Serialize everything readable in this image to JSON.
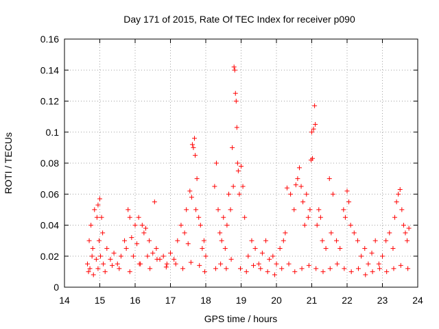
{
  "chart_data": {
    "type": "scatter",
    "title": "Day 171 of 2015, Rate Of TEC Index for receiver p090",
    "xlabel": "GPS time / hours",
    "ylabel": "ROTI / TECUs",
    "xlim": [
      14,
      24
    ],
    "ylim": [
      0,
      0.16
    ],
    "grid": true,
    "marker": "+",
    "colors": {
      "series": "#ff0000",
      "axis": "#000000",
      "grid": "#a0a0a0"
    },
    "xticks": [
      14,
      15,
      16,
      17,
      18,
      19,
      20,
      21,
      22,
      23,
      24
    ],
    "xtick_labels": [
      "14",
      "15",
      "16",
      "17",
      "18",
      "19",
      "20",
      "21",
      "22",
      "23",
      "24"
    ],
    "yticks": [
      0,
      0.02,
      0.04,
      0.06,
      0.08,
      0.1,
      0.12,
      0.14,
      0.16
    ],
    "ytick_labels": [
      "0",
      "0.02",
      "0.04",
      "0.06",
      "0.08",
      "0.1",
      "0.12",
      "0.14",
      "0.16"
    ],
    "series": [
      {
        "name": "ROTI",
        "x": [
          14.65,
          14.7,
          14.72,
          14.75,
          14.78,
          14.8,
          14.85,
          14.9,
          14.92,
          14.95,
          14.98,
          15.0,
          15.02,
          15.05,
          15.08,
          15.1,
          15.2,
          15.3,
          15.4,
          15.5,
          15.6,
          15.7,
          15.75,
          15.8,
          15.85,
          15.9,
          15.95,
          16.0,
          16.05,
          16.1,
          16.15,
          16.2,
          16.25,
          16.3,
          16.35,
          16.4,
          16.5,
          16.55,
          16.6,
          16.7,
          16.8,
          16.9,
          17.0,
          17.1,
          17.2,
          17.3,
          17.4,
          17.45,
          17.5,
          17.55,
          17.6,
          17.62,
          17.65,
          17.68,
          17.7,
          17.72,
          17.75,
          17.8,
          17.85,
          17.9,
          17.95,
          18.0,
          18.25,
          18.3,
          18.35,
          18.4,
          18.45,
          18.5,
          18.55,
          18.6,
          18.65,
          18.7,
          18.75,
          18.78,
          18.8,
          18.82,
          18.84,
          18.86,
          18.88,
          18.9,
          18.92,
          18.95,
          19.0,
          19.05,
          19.1,
          19.2,
          19.3,
          19.4,
          19.5,
          19.6,
          19.7,
          19.8,
          19.9,
          20.0,
          20.1,
          20.2,
          20.25,
          20.3,
          20.4,
          20.5,
          20.55,
          20.6,
          20.65,
          20.7,
          20.75,
          20.8,
          20.85,
          20.9,
          20.95,
          20.98,
          21.0,
          21.02,
          21.05,
          21.08,
          21.1,
          21.15,
          21.2,
          21.25,
          21.3,
          21.4,
          21.5,
          21.55,
          21.6,
          21.7,
          21.8,
          21.9,
          21.95,
          22.0,
          22.05,
          22.1,
          22.2,
          22.3,
          22.4,
          22.5,
          22.6,
          22.7,
          22.8,
          22.9,
          23.0,
          23.1,
          23.2,
          23.3,
          23.35,
          23.4,
          23.45,
          23.5,
          23.55,
          23.6,
          23.65,
          23.7,
          23.75,
          14.68,
          14.82,
          14.95,
          15.15,
          15.35,
          15.55,
          15.85,
          16.12,
          16.42,
          16.62,
          16.88,
          17.15,
          17.35,
          17.58,
          17.82,
          17.97,
          18.28,
          18.42,
          18.58,
          18.72,
          18.98,
          19.15,
          19.35,
          19.55,
          19.75,
          19.95,
          20.15,
          20.35,
          20.52,
          20.72,
          20.92,
          21.12,
          21.32,
          21.52,
          21.72,
          21.92,
          22.12,
          22.32,
          22.52,
          22.72,
          22.92,
          23.12,
          23.32,
          23.52,
          23.72
        ],
        "y": [
          0.015,
          0.03,
          0.012,
          0.04,
          0.02,
          0.025,
          0.05,
          0.018,
          0.045,
          0.053,
          0.03,
          0.057,
          0.02,
          0.045,
          0.035,
          0.015,
          0.025,
          0.018,
          0.022,
          0.015,
          0.02,
          0.03,
          0.025,
          0.05,
          0.045,
          0.032,
          0.02,
          0.04,
          0.028,
          0.045,
          0.015,
          0.04,
          0.035,
          0.038,
          0.02,
          0.03,
          0.022,
          0.055,
          0.025,
          0.018,
          0.02,
          0.015,
          0.022,
          0.018,
          0.03,
          0.04,
          0.035,
          0.05,
          0.028,
          0.062,
          0.058,
          0.092,
          0.09,
          0.096,
          0.085,
          0.05,
          0.07,
          0.045,
          0.04,
          0.025,
          0.03,
          0.02,
          0.065,
          0.08,
          0.05,
          0.035,
          0.03,
          0.045,
          0.025,
          0.04,
          0.06,
          0.05,
          0.09,
          0.065,
          0.142,
          0.14,
          0.125,
          0.12,
          0.103,
          0.08,
          0.075,
          0.06,
          0.078,
          0.065,
          0.045,
          0.02,
          0.03,
          0.025,
          0.015,
          0.022,
          0.03,
          0.018,
          0.02,
          0.015,
          0.025,
          0.03,
          0.035,
          0.064,
          0.06,
          0.05,
          0.066,
          0.07,
          0.077,
          0.065,
          0.055,
          0.04,
          0.06,
          0.045,
          0.05,
          0.082,
          0.1,
          0.083,
          0.102,
          0.117,
          0.105,
          0.04,
          0.05,
          0.045,
          0.03,
          0.025,
          0.07,
          0.035,
          0.06,
          0.03,
          0.025,
          0.05,
          0.045,
          0.062,
          0.055,
          0.04,
          0.035,
          0.03,
          0.02,
          0.025,
          0.015,
          0.022,
          0.03,
          0.015,
          0.02,
          0.03,
          0.035,
          0.025,
          0.045,
          0.055,
          0.06,
          0.063,
          0.05,
          0.04,
          0.035,
          0.03,
          0.038,
          0.01,
          0.008,
          0.012,
          0.01,
          0.014,
          0.012,
          0.01,
          0.015,
          0.012,
          0.018,
          0.013,
          0.015,
          0.012,
          0.016,
          0.014,
          0.01,
          0.012,
          0.015,
          0.012,
          0.018,
          0.012,
          0.01,
          0.014,
          0.012,
          0.01,
          0.008,
          0.012,
          0.015,
          0.01,
          0.012,
          0.014,
          0.012,
          0.01,
          0.012,
          0.015,
          0.012,
          0.01,
          0.012,
          0.008,
          0.01,
          0.012,
          0.01,
          0.012,
          0.014,
          0.012
        ]
      }
    ]
  }
}
